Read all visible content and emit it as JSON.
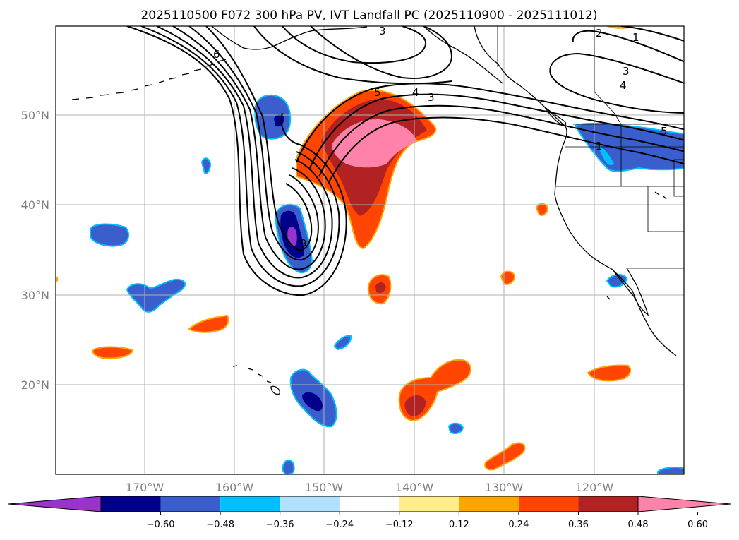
{
  "title": "2025110500 F072 300 hPa PV, IVT Landfall PC (2025110900 - 2025111012)",
  "lat_ticks": [
    "50°N",
    "40°N",
    "30°N",
    "20°N"
  ],
  "lon_ticks": [
    "170°W",
    "160°W",
    "150°W",
    "140°W",
    "130°W",
    "120°W"
  ],
  "colorbar": {
    "ticks": [
      "−0.60",
      "−0.48",
      "−0.36",
      "−0.24",
      "−0.12",
      "0.12",
      "0.24",
      "0.36",
      "0.48",
      "0.60"
    ],
    "colors": [
      "#9933cc",
      "#00008b",
      "#3a5fcd",
      "#00bfff",
      "#b0e2ff",
      "#ffffff",
      "#ffec8b",
      "#ffa500",
      "#ff4500",
      "#b22222",
      "#ff82ab"
    ]
  },
  "contour_labels": [
    "3",
    "2",
    "1",
    "3",
    "4",
    "5",
    "6",
    "5",
    "4",
    "3",
    "1",
    "9"
  ],
  "colors": {
    "frame": "#000000",
    "grid": "#b0b0b0",
    "contour": "#000000",
    "coast": "#000000"
  }
}
